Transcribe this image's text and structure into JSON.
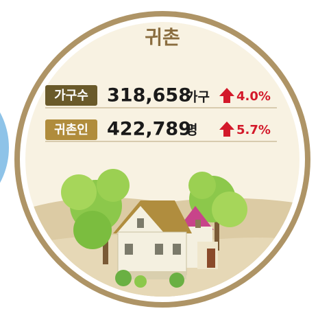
{
  "header": {
    "title": "귀촌"
  },
  "rows": [
    {
      "label": "가구수",
      "value": "318,658",
      "unit": "가구",
      "change": "4.0%"
    },
    {
      "label": "귀촌인",
      "value": "422,789",
      "unit": "명",
      "change": "5.7%"
    }
  ]
}
